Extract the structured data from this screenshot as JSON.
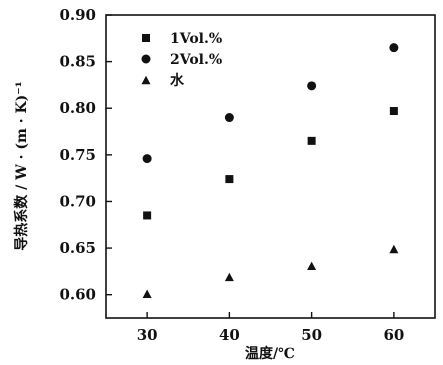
{
  "chart_data": {
    "type": "scatter",
    "xlabel": "温度/℃",
    "ylabel": "导热系数 / W · (m · K)⁻¹",
    "xlim": [
      25,
      65
    ],
    "ylim": [
      0.575,
      0.9
    ],
    "x_ticks": [
      "30",
      "40",
      "50",
      "60"
    ],
    "y_ticks": [
      "0.60",
      "0.65",
      "0.70",
      "0.75",
      "0.80",
      "0.85",
      "0.90"
    ],
    "x_tick_values": [
      30,
      40,
      50,
      60
    ],
    "y_tick_values": [
      0.6,
      0.65,
      0.7,
      0.75,
      0.8,
      0.85,
      0.9
    ],
    "grid": false,
    "legend_position": "top-left",
    "series": [
      {
        "name": "1Vol.%",
        "marker": "square",
        "x": [
          30,
          40,
          50,
          60
        ],
        "y": [
          0.685,
          0.724,
          0.765,
          0.797
        ]
      },
      {
        "name": "2Vol.%",
        "marker": "circle",
        "x": [
          30,
          40,
          50,
          60
        ],
        "y": [
          0.746,
          0.79,
          0.824,
          0.865
        ]
      },
      {
        "name": "水",
        "marker": "triangle",
        "x": [
          30,
          40,
          50,
          60
        ],
        "y": [
          0.601,
          0.619,
          0.631,
          0.649
        ]
      }
    ]
  }
}
